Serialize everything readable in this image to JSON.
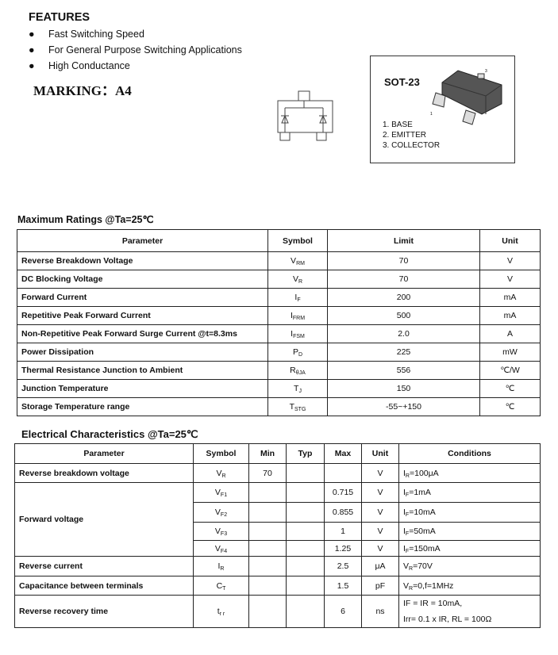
{
  "features": {
    "title": "FEATURES",
    "bullet": "●",
    "items": [
      "Fast Switching Speed",
      "For General Purpose Switching Applications",
      "High Conductance"
    ]
  },
  "marking": "MARKING：A4",
  "package": {
    "title": "SOT-23",
    "pins": [
      "1.  BASE",
      "2.  EMITTER",
      "3.  COLLECTOR"
    ],
    "pin_labels": [
      "1",
      "2",
      "3"
    ]
  },
  "max_ratings": {
    "title": "Maximum Ratings @Ta=25℃",
    "headers": [
      "Parameter",
      "Symbol",
      "Limit",
      "Unit"
    ],
    "rows": [
      {
        "param": "Reverse Breakdown Voltage",
        "sym": "V",
        "sub": "RM",
        "limit": "70",
        "unit": "V"
      },
      {
        "param": "DC Blocking Voltage",
        "sym": "V",
        "sub": "R",
        "limit": "70",
        "unit": "V"
      },
      {
        "param": "Forward Current",
        "sym": "I",
        "sub": "F",
        "limit": "200",
        "unit": "mA"
      },
      {
        "param": "Repetitive Peak Forward Current",
        "sym": "I",
        "sub": "FRM",
        "limit": "500",
        "unit": "mA"
      },
      {
        "param": "Non-Repetitive Peak Forward Surge Current @t=8.3ms",
        "sym": "I",
        "sub": "FSM",
        "limit": "2.0",
        "unit": "A"
      },
      {
        "param": "Power Dissipation",
        "sym": "P",
        "sub": "D",
        "limit": "225",
        "unit": "mW"
      },
      {
        "param": "Thermal Resistance Junction to Ambient",
        "sym": "R",
        "sub": "θJA",
        "limit": "556",
        "unit": "℃/W"
      },
      {
        "param": "Junction Temperature",
        "sym": "T",
        "sub": "J",
        "limit": "150",
        "unit": "℃"
      },
      {
        "param": "Storage Temperature range",
        "sym": "T",
        "sub": "STG",
        "limit": "-55~+150",
        "unit": "℃"
      }
    ]
  },
  "electrical": {
    "title": "Electrical Characteristics @Ta=25℃",
    "headers": [
      "Parameter",
      "Symbol",
      "Min",
      "Typ",
      "Max",
      "Unit",
      "Conditions"
    ],
    "rows": [
      {
        "param": "Reverse breakdown voltage",
        "sym": "V",
        "sub": "R",
        "min": "70",
        "typ": "",
        "max": "",
        "unit": "V",
        "cond": "I",
        "cond_sub": "R",
        "cond_rest": "=100μA"
      },
      {
        "param": "Forward voltage",
        "sym": "V",
        "sub": "F1",
        "min": "",
        "typ": "",
        "max": "0.715",
        "unit": "V",
        "cond": "I",
        "cond_sub": "F",
        "cond_rest": "=1mA"
      },
      {
        "sym": "V",
        "sub": "F2",
        "min": "",
        "typ": "",
        "max": "0.855",
        "unit": "V",
        "cond": "I",
        "cond_sub": "F",
        "cond_rest": "=10mA"
      },
      {
        "sym": "V",
        "sub": "F3",
        "min": "",
        "typ": "",
        "max": "1",
        "unit": "V",
        "cond": "I",
        "cond_sub": "F",
        "cond_rest": "=50mA"
      },
      {
        "sym": "V",
        "sub": "F4",
        "min": "",
        "typ": "",
        "max": "1.25",
        "unit": "V",
        "cond": "I",
        "cond_sub": "F",
        "cond_rest": "=150mA"
      },
      {
        "param": "Reverse current",
        "sym": "I",
        "sub": "R",
        "min": "",
        "typ": "",
        "max": "2.5",
        "unit": "μA",
        "cond": "V",
        "cond_sub": "R",
        "cond_rest": "=70V"
      },
      {
        "param": "Capacitance between terminals",
        "sym": "C",
        "sub": "T",
        "min": "",
        "typ": "",
        "max": "1.5",
        "unit": "pF",
        "cond": "V",
        "cond_sub": "R",
        "cond_rest": "=0,f=1MHz"
      },
      {
        "param": "Reverse recovery time",
        "sym": "t",
        "sub": "r r",
        "min": "",
        "typ": "",
        "max": "6",
        "unit": "ns",
        "cond_line1": "IF = IR = 10mA,",
        "cond_line2": "Irr= 0.1 x IR, RL = 100Ω"
      }
    ]
  }
}
